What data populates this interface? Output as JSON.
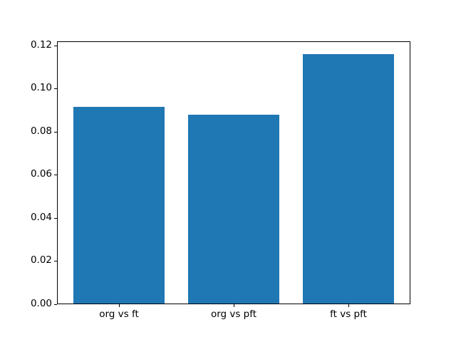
{
  "figure": {
    "background": "#ffffff",
    "spine_color": "#000000",
    "tick_color": "#000000",
    "text_color": "#000000"
  },
  "chart_data": {
    "type": "bar",
    "title": "",
    "xlabel": "",
    "ylabel": "",
    "categories": [
      "org vs ft",
      "org vs pft",
      "ft vs pft"
    ],
    "values": [
      0.0915,
      0.0877,
      0.116
    ],
    "bar_color": "#1f77b4",
    "bar_width": 0.8,
    "bar_centers": [
      0,
      1,
      2
    ],
    "xlim": [
      -0.54,
      2.54
    ],
    "ylim": [
      0,
      0.1218
    ],
    "yticks": [
      0,
      0.02,
      0.04,
      0.06,
      0.08,
      0.1,
      0.12
    ],
    "ytick_labels": [
      "0.00",
      "0.02",
      "0.04",
      "0.06",
      "0.08",
      "0.10",
      "0.12"
    ],
    "grid": false,
    "legend": null
  }
}
